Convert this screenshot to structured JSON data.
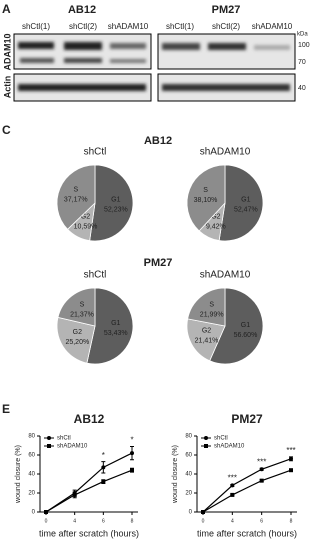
{
  "panel_letters": [
    "A",
    "C",
    "E"
  ],
  "blot": {
    "groups": [
      {
        "name": "AB12",
        "lanes": [
          "shCtl(1)",
          "shCtl(2)",
          "shADAM10"
        ]
      },
      {
        "name": "PM27",
        "lanes": [
          "shCtl(1)",
          "shCtl(2)",
          "shADAM10"
        ]
      }
    ],
    "row_labels": [
      "ADAM10",
      "Actin"
    ],
    "markers": [
      "100",
      "70",
      "40"
    ],
    "unit": "kDa"
  },
  "pie_rows": [
    "AB12",
    "PM27"
  ],
  "chart_data": [
    {
      "type": "pie",
      "title": "shCtl",
      "categories": [
        "G1",
        "G2",
        "S"
      ],
      "values": [
        52.23,
        10.59,
        37.17
      ],
      "value_labels": [
        "52,23%",
        "10,59%",
        "37,17%"
      ],
      "colors": [
        "#5d5d5d",
        "#b4b4b4",
        "#8c8c8c"
      ]
    },
    {
      "type": "pie",
      "title": "shADAM10",
      "categories": [
        "G1",
        "G2",
        "S"
      ],
      "values": [
        52.47,
        9.42,
        38.1
      ],
      "value_labels": [
        "52,47%",
        "9,42%",
        "38,10%"
      ],
      "colors": [
        "#5d5d5d",
        "#b4b4b4",
        "#8c8c8c"
      ]
    },
    {
      "type": "pie",
      "title": "shCtl",
      "categories": [
        "G1",
        "G2",
        "S"
      ],
      "values": [
        53.43,
        25.2,
        21.37
      ],
      "value_labels": [
        "53,43%",
        "25,20%",
        "21,37%"
      ],
      "colors": [
        "#5d5d5d",
        "#b4b4b4",
        "#8c8c8c"
      ]
    },
    {
      "type": "pie",
      "title": "shADAM10",
      "categories": [
        "G1",
        "G2",
        "S"
      ],
      "values": [
        56.6,
        21.41,
        21.99
      ],
      "value_labels": [
        "56.60%",
        "21,41%",
        "21,99%"
      ],
      "colors": [
        "#5d5d5d",
        "#b4b4b4",
        "#8c8c8c"
      ]
    },
    {
      "type": "line",
      "title": "AB12",
      "x_label": "time after scratch (hours)",
      "y_label": "wound closure (%)",
      "categories": [
        "0",
        "4",
        "6",
        "8"
      ],
      "ylim": [
        0,
        80
      ],
      "yticks": [
        0,
        20,
        40,
        60,
        80
      ],
      "significance": [
        null,
        null,
        "*",
        "*"
      ],
      "series": [
        {
          "name": "shCtl",
          "color": "#000000",
          "marker": "circle",
          "values": [
            0,
            20,
            47,
            62
          ],
          "errors": [
            0,
            3,
            6,
            7
          ]
        },
        {
          "name": "shADAM10",
          "color": "#000000",
          "marker": "square",
          "values": [
            0,
            18,
            32,
            44
          ],
          "errors": [
            0,
            3,
            2,
            2
          ]
        }
      ]
    },
    {
      "type": "line",
      "title": "PM27",
      "x_label": "time after scratch (hours)",
      "y_label": "wound closure (%)",
      "categories": [
        "0",
        "4",
        "6",
        "8"
      ],
      "ylim": [
        0,
        80
      ],
      "yticks": [
        0,
        20,
        40,
        60,
        80
      ],
      "significance": [
        null,
        "***",
        "***",
        "***"
      ],
      "series": [
        {
          "name": "shCtl",
          "color": "#000000",
          "marker": "circle",
          "values": [
            0,
            28,
            45,
            56
          ],
          "errors": [
            0,
            1,
            1,
            2
          ]
        },
        {
          "name": "shADAM10",
          "color": "#000000",
          "marker": "square",
          "values": [
            0,
            18,
            33,
            44
          ],
          "errors": [
            0,
            1,
            1,
            1
          ]
        }
      ]
    }
  ]
}
